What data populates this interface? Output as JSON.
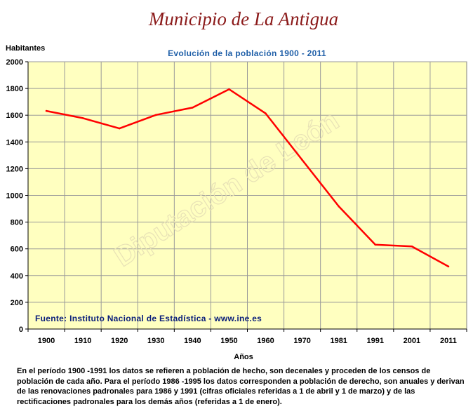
{
  "title": "Municipio de La Antigua",
  "footnote": "En el período 1900 -1991 los datos se refieren a población de hecho, son decenales y proceden de los censos de población de cada año. Para el período 1986 -1995 los datos corresponden a población de derecho, son anuales y derivan de las renovaciones padronales para 1986 y 1991 (cifras oficiales referidas a 1 de abril y 1 de marzo) y de las rectificaciones padronales para los demás años (referidas a 1 de enero).",
  "watermark": "Diputación de León",
  "colors": {
    "plot_bg": "#FFFFC0",
    "line": "#FF0000",
    "subtitle": "#1F5FA8",
    "source": "#0A1E7A",
    "title": "#8B1A1A",
    "grid": "#999999"
  },
  "chart_data": {
    "type": "line",
    "title": "Evolución de la población 1900 - 2011",
    "ylabel": "Habitantes",
    "xlabel": "Años",
    "source": "Fuente: Instituto Nacional de Estadística - www.ine.es",
    "categories": [
      "1900",
      "1910",
      "1920",
      "1930",
      "1940",
      "1950",
      "1960",
      "1970",
      "1981",
      "1991",
      "2001",
      "2011"
    ],
    "series": [
      {
        "values": [
          1632,
          1578,
          1501,
          1602,
          1657,
          1794,
          1613,
          1265,
          918,
          631,
          618,
          468
        ]
      }
    ],
    "yticks": [
      "0",
      "200",
      "400",
      "600",
      "800",
      "1000",
      "1200",
      "1400",
      "1600",
      "1800",
      "2000"
    ],
    "ylim": [
      0,
      2000
    ],
    "grid": true,
    "legend": "none"
  }
}
